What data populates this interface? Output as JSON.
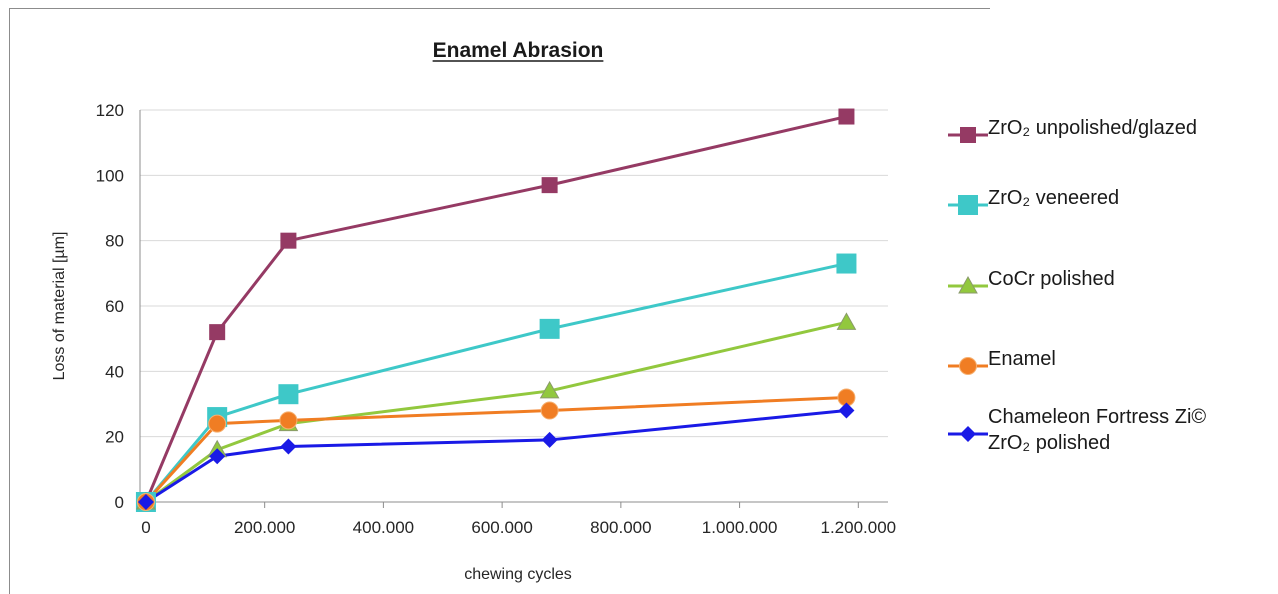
{
  "chart_data": {
    "type": "line",
    "title": "Enamel Abrasion",
    "xlabel": "chewing cycles",
    "ylabel": "Loss of material [µm]",
    "xlim": [
      -10000,
      1250000
    ],
    "ylim": [
      0,
      120
    ],
    "xticks": [
      0,
      200000,
      400000,
      600000,
      800000,
      1000000,
      1200000
    ],
    "xtick_labels": [
      "0",
      "200.000",
      "400.000",
      "600.000",
      "800.000",
      "1.000.000",
      "1.200.000"
    ],
    "yticks": [
      0,
      20,
      40,
      60,
      80,
      100,
      120
    ],
    "ytick_labels": [
      "0",
      "20",
      "40",
      "60",
      "80",
      "100",
      "120"
    ],
    "grid": "horizontal",
    "legend_position": "right",
    "series": [
      {
        "name": "ZrO₂ unpolished/glazed",
        "color": "#953a64",
        "marker": "square",
        "points": [
          [
            0,
            0
          ],
          [
            120000,
            52
          ],
          [
            240000,
            80
          ],
          [
            680000,
            97
          ],
          [
            1180000,
            118
          ]
        ]
      },
      {
        "name": "ZrO₂ veneered",
        "color": "#3ec8c8",
        "marker": "square-large",
        "points": [
          [
            0,
            0
          ],
          [
            120000,
            26
          ],
          [
            240000,
            33
          ],
          [
            680000,
            53
          ],
          [
            1180000,
            73
          ]
        ]
      },
      {
        "name": "CoCr polished",
        "color": "#92c83e",
        "marker": "triangle",
        "points": [
          [
            0,
            0
          ],
          [
            120000,
            16
          ],
          [
            240000,
            24
          ],
          [
            680000,
            34
          ],
          [
            1180000,
            55
          ]
        ]
      },
      {
        "name": "Enamel",
        "color": "#f07d23",
        "marker": "circle",
        "points": [
          [
            0,
            0
          ],
          [
            120000,
            24
          ],
          [
            240000,
            25
          ],
          [
            680000,
            28
          ],
          [
            1180000,
            32
          ]
        ]
      },
      {
        "name": "Chameleon Fortress Zi© ZrO₂ polished",
        "label_lines": [
          "Chameleon Fortress Zi©",
          "ZrO₂ polished"
        ],
        "color": "#1a1ae6",
        "marker": "diamond",
        "points": [
          [
            0,
            0
          ],
          [
            120000,
            14
          ],
          [
            240000,
            17
          ],
          [
            680000,
            19
          ],
          [
            1180000,
            28
          ]
        ]
      }
    ]
  }
}
